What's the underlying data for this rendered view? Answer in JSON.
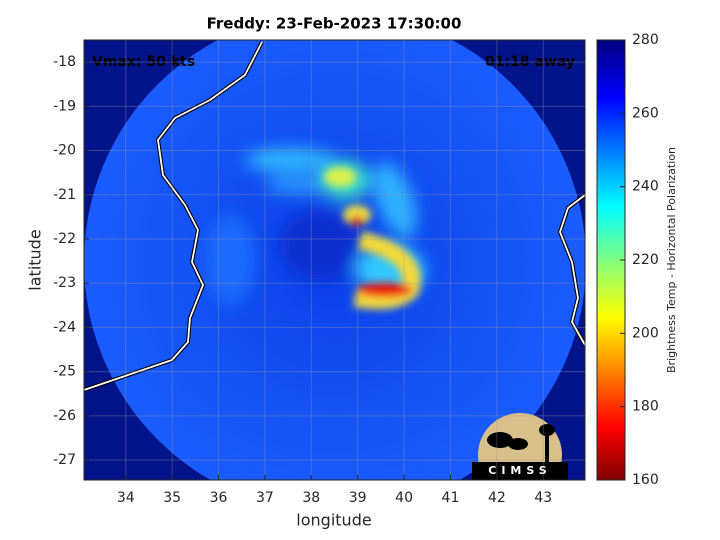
{
  "chart_data": {
    "type": "map",
    "title": "Freddy: 23-Feb-2023 17:30:00",
    "annotations": [
      "Vmax: 50 kts",
      "01:18 away"
    ],
    "x_label": "longitude",
    "y_label": "latitude",
    "xlim": [
      33.1,
      43.9
    ],
    "xticks": [
      34,
      35,
      36,
      37,
      38,
      39,
      40,
      41,
      42,
      43
    ],
    "ylim": [
      -27.45,
      -17.5
    ],
    "yticks": [
      -27,
      -26,
      -25,
      -24,
      -23,
      -22,
      -21,
      -20,
      -19,
      -18
    ],
    "grid": true,
    "colorbar": {
      "label": "Brightness Temp - Horizontal Polarization",
      "lim": [
        160,
        280
      ],
      "ticks": [
        160,
        180,
        200,
        220,
        240,
        260,
        280
      ]
    }
  },
  "logo_text": "CIMSS"
}
